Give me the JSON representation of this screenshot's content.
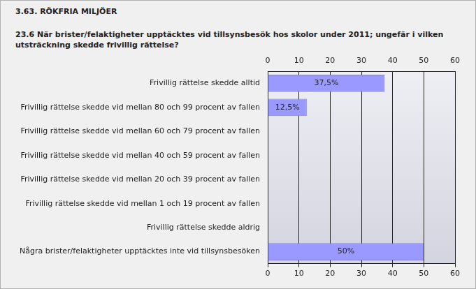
{
  "chart_data": {
    "type": "bar",
    "orientation": "horizontal",
    "title": "3.63. RÖKFRIA MILJÖER",
    "subtitle": "23.6 När brister/felaktigheter upptäcktes vid tillsynsbesök hos skolor under 2011; ungefär i vilken utsträckning skedde frivillig rättelse?",
    "categories": [
      "Frivillig rättelse skedde alltid",
      "Frivillig rättelse skedde vid mellan 80 och 99 procent av fallen",
      "Frivillig rättelse skedde vid mellan 60 och 79 procent av fallen",
      "Frivillig rättelse skedde vid mellan 40 och 59 procent av fallen",
      "Frivillig rättelse skedde vid mellan 20 och 39 procent av fallen",
      "Frivillig rättelse skedde vid mellan 1 och 19 procent av fallen",
      "Frivillig rättelse skedde aldrig",
      "Några brister/felaktigheter upptäcktes inte vid tillsynsbesöken"
    ],
    "values": [
      37.5,
      12.5,
      0,
      0,
      0,
      0,
      0,
      50
    ],
    "value_labels": [
      "37,5%",
      "12,5%",
      null,
      null,
      null,
      null,
      null,
      "50%"
    ],
    "data_labels": true,
    "color": "#9999ff",
    "xlim": [
      0,
      60
    ],
    "xticks": [
      0,
      10,
      20,
      30,
      40,
      50,
      60
    ],
    "grid": true
  }
}
